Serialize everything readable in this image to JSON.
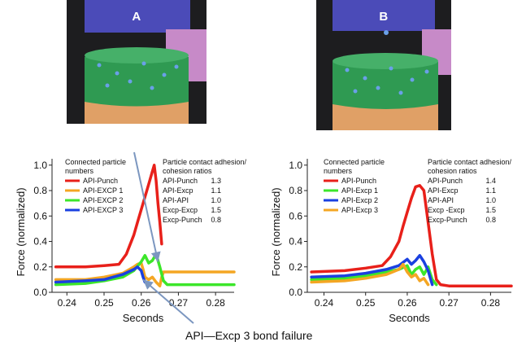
{
  "panels": [
    {
      "label": "A",
      "colors": {
        "punch": "#4b4bb8",
        "side": "#c78ac8",
        "bed": "#2f9a52",
        "die": "#e0a066"
      }
    },
    {
      "label": "B",
      "colors": {
        "punch": "#4b4bb8",
        "side": "#c78ac8",
        "bed": "#2f9a52",
        "die": "#e0a066"
      }
    }
  ],
  "footnote": "API—Excp 3 bond failure",
  "chart_data": [
    {
      "type": "line",
      "xlabel": "Seconds",
      "ylabel": "Force (normalized)",
      "xlim": [
        0.236,
        0.285
      ],
      "ylim": [
        0.0,
        1.05
      ],
      "xticks": [
        "0.24",
        "0.25",
        "0.26",
        "0.27",
        "0.28"
      ],
      "yticks": [
        "0.0",
        "0.2",
        "0.4",
        "0.6",
        "0.8",
        "1.0"
      ],
      "grid": false,
      "legend_title": "Connected particle numbers",
      "legend_position": "top-left",
      "series": [
        {
          "name": "API-Punch",
          "color": "#e8201a",
          "x": [
            0.237,
            0.245,
            0.25,
            0.254,
            0.256,
            0.258,
            0.259,
            0.26,
            0.261,
            0.262,
            0.263,
            0.2635,
            0.264,
            0.2645,
            0.265,
            0.2655
          ],
          "y": [
            0.2,
            0.2,
            0.21,
            0.22,
            0.3,
            0.45,
            0.55,
            0.65,
            0.75,
            0.85,
            0.95,
            1.0,
            0.88,
            0.7,
            0.55,
            0.38
          ]
        },
        {
          "name": "API-EXCP 1",
          "color": "#f4a623",
          "x": [
            0.237,
            0.245,
            0.25,
            0.255,
            0.258,
            0.259,
            0.26,
            0.2605,
            0.261,
            0.262,
            0.263,
            0.264,
            0.265,
            0.2655,
            0.266,
            0.27,
            0.285
          ],
          "y": [
            0.1,
            0.1,
            0.12,
            0.15,
            0.2,
            0.22,
            0.23,
            0.18,
            0.12,
            0.1,
            0.12,
            0.08,
            0.05,
            0.12,
            0.16,
            0.16,
            0.16
          ]
        },
        {
          "name": "API-EXCP 2",
          "color": "#3ce62a",
          "x": [
            0.237,
            0.245,
            0.25,
            0.255,
            0.258,
            0.26,
            0.261,
            0.262,
            0.263,
            0.264,
            0.265,
            0.266,
            0.267,
            0.27,
            0.285
          ],
          "y": [
            0.06,
            0.07,
            0.09,
            0.12,
            0.17,
            0.24,
            0.29,
            0.23,
            0.25,
            0.3,
            0.2,
            0.09,
            0.06,
            0.06,
            0.06
          ]
        },
        {
          "name": "API-EXCP 3",
          "color": "#1a40e0",
          "x": [
            0.237,
            0.245,
            0.25,
            0.255,
            0.258,
            0.259,
            0.26,
            0.2605,
            0.261
          ],
          "y": [
            0.08,
            0.09,
            0.1,
            0.14,
            0.18,
            0.2,
            0.17,
            0.12,
            0.08
          ]
        }
      ],
      "ratios": {
        "title": "Particle contact adhesion/ cohesion ratios",
        "rows": [
          {
            "label": "API-Punch",
            "value": "1.3"
          },
          {
            "label": "API-Excp",
            "value": "1.1"
          },
          {
            "label": "API-API",
            "value": "1.0"
          },
          {
            "label": "Excp-Excp",
            "value": "1.5"
          },
          {
            "label": "Excp-Punch",
            "value": "0.8"
          }
        ]
      }
    },
    {
      "type": "line",
      "xlabel": "Seconds",
      "ylabel": "Force (normalized)",
      "xlim": [
        0.236,
        0.285
      ],
      "ylim": [
        0.0,
        1.05
      ],
      "xticks": [
        "0.24",
        "0.25",
        "0.26",
        "0.27",
        "0.28"
      ],
      "yticks": [
        "0.0",
        "0.2",
        "0.4",
        "0.6",
        "0.8",
        "1.0"
      ],
      "grid": false,
      "legend_title": "Connected particle numbers",
      "legend_position": "top-left",
      "series": [
        {
          "name": "API-Punch",
          "color": "#e8201a",
          "x": [
            0.237,
            0.245,
            0.25,
            0.254,
            0.256,
            0.258,
            0.259,
            0.26,
            0.261,
            0.262,
            0.263,
            0.264,
            0.265,
            0.266,
            0.267,
            0.268,
            0.27,
            0.285
          ],
          "y": [
            0.16,
            0.17,
            0.19,
            0.21,
            0.28,
            0.4,
            0.52,
            0.63,
            0.74,
            0.83,
            0.84,
            0.8,
            0.55,
            0.3,
            0.1,
            0.06,
            0.05,
            0.05
          ]
        },
        {
          "name": "API-Excp 1",
          "color": "#3ce62a",
          "x": [
            0.237,
            0.245,
            0.25,
            0.255,
            0.258,
            0.26,
            0.261,
            0.262,
            0.263,
            0.264,
            0.265,
            0.266,
            0.267
          ],
          "y": [
            0.1,
            0.11,
            0.13,
            0.16,
            0.18,
            0.21,
            0.14,
            0.18,
            0.2,
            0.14,
            0.2,
            0.1,
            0.06
          ]
        },
        {
          "name": "API-Excp 2",
          "color": "#1a40e0",
          "x": [
            0.237,
            0.245,
            0.25,
            0.255,
            0.258,
            0.26,
            0.261,
            0.262,
            0.263,
            0.264,
            0.265,
            0.266
          ],
          "y": [
            0.12,
            0.13,
            0.15,
            0.18,
            0.21,
            0.26,
            0.22,
            0.25,
            0.29,
            0.24,
            0.17,
            0.06
          ]
        },
        {
          "name": "API-Excp 3",
          "color": "#f4a623",
          "x": [
            0.237,
            0.245,
            0.25,
            0.255,
            0.258,
            0.259,
            0.26,
            0.261,
            0.262,
            0.263,
            0.264,
            0.265
          ],
          "y": [
            0.08,
            0.09,
            0.11,
            0.14,
            0.18,
            0.22,
            0.16,
            0.12,
            0.14,
            0.09,
            0.11,
            0.06
          ]
        }
      ],
      "ratios": {
        "title": "Particle contact adhesion/ cohesion ratios",
        "rows": [
          {
            "label": "API-Punch",
            "value": "1.4"
          },
          {
            "label": "API-Excp",
            "value": "1.1"
          },
          {
            "label": "API-API",
            "value": "1.0"
          },
          {
            "label": "Excp -Excp",
            "value": "1.5"
          },
          {
            "label": "Excp-Punch",
            "value": "0.8"
          }
        ]
      }
    }
  ]
}
